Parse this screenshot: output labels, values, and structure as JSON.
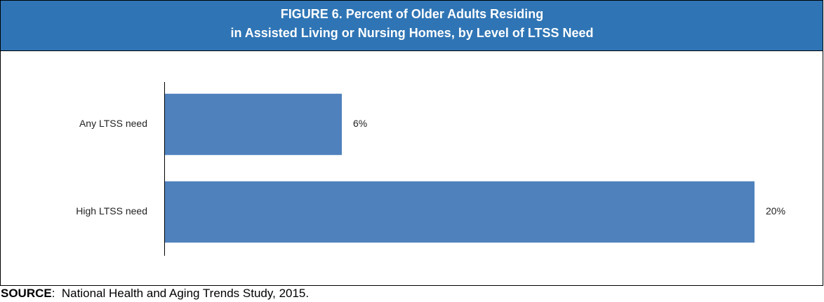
{
  "chart_data": {
    "type": "bar",
    "orientation": "horizontal",
    "title": [
      "FIGURE 6. Percent of Older Adults Residing",
      "in Assisted Living or Nursing Homes, by Level of LTSS Need"
    ],
    "categories": [
      "Any LTSS need",
      "High LTSS need"
    ],
    "values": [
      6,
      20
    ],
    "value_labels": [
      "6%",
      "20%"
    ],
    "color": "#4f81bd",
    "source_label": "SOURCE",
    "source_text": ":  National Health and Aging Trends Study, 2015."
  }
}
